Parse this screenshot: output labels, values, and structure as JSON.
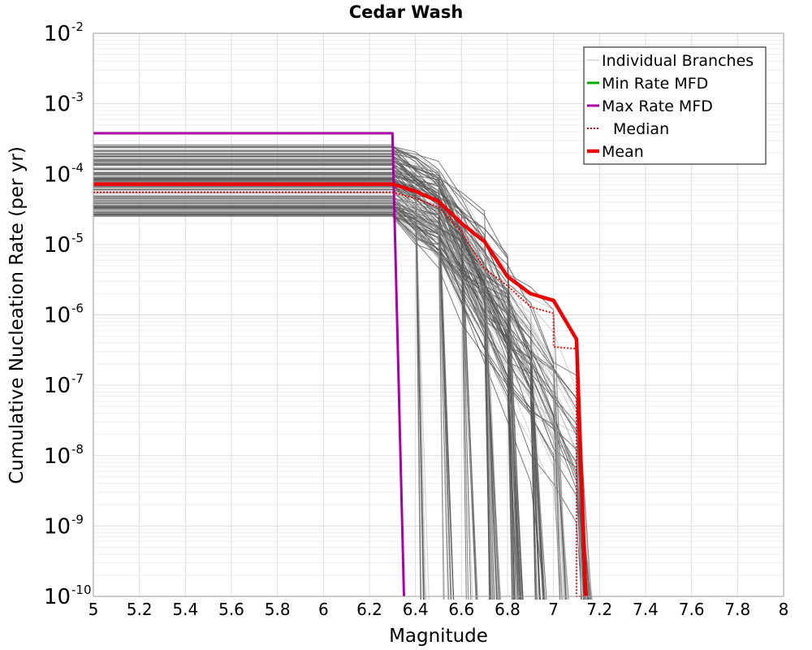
{
  "chart_data": {
    "type": "line",
    "title": "Cedar Wash",
    "xlabel": "Magnitude",
    "ylabel": "Cumulative Nucleation Rate (per yr)",
    "xlim": [
      5,
      8
    ],
    "ylim_log10": [
      -10,
      -2
    ],
    "x_ticks": [
      "5",
      "5.2",
      "5.4",
      "5.6",
      "5.8",
      "6",
      "6.2",
      "6.4",
      "6.6",
      "6.8",
      "7",
      "7.2",
      "7.4",
      "7.6",
      "7.8",
      "8"
    ],
    "y_tick_base": "10",
    "y_tick_exponents": [
      "-2",
      "-3",
      "-4",
      "-5",
      "-6",
      "-7",
      "-8",
      "-9",
      "-10"
    ],
    "grid": true,
    "legend": {
      "position": "top-right",
      "entries": [
        {
          "label": "Individual Branches",
          "color": "#bbbbbb",
          "style": "thin"
        },
        {
          "label": "Min Rate MFD",
          "color": "#00aa00",
          "style": "solid"
        },
        {
          "label": "Max Rate MFD",
          "color": "#aa00aa",
          "style": "solid"
        },
        {
          "label": "Median",
          "color": "#ee0000",
          "style": "dotted"
        },
        {
          "label": "Mean",
          "color": "#ee0000",
          "style": "thick"
        }
      ]
    },
    "branch_count": 160,
    "branch_color": "#555555",
    "series": [
      {
        "name": "Max Rate MFD",
        "color": "#aa00aa",
        "x": [
          5.0,
          6.3,
          6.3,
          6.35
        ],
        "y": [
          0.00038,
          0.00038,
          0.00038,
          1e-10
        ]
      },
      {
        "name": "Median",
        "color": "#ee0000",
        "x": [
          5.0,
          6.3,
          6.4,
          6.5,
          6.6,
          6.7,
          6.8,
          6.9,
          7.0,
          7.0,
          7.1,
          7.1,
          7.14
        ],
        "y": [
          5.5e-05,
          5.5e-05,
          4.5e-05,
          3.4e-05,
          1.5e-05,
          4.5e-06,
          2.6e-06,
          1.3e-06,
          1.05e-06,
          3.5e-07,
          3.3e-07,
          1e-10,
          1e-10
        ]
      },
      {
        "name": "Mean",
        "color": "#ee0000",
        "x": [
          5.0,
          6.3,
          6.4,
          6.5,
          6.6,
          6.7,
          6.8,
          6.9,
          7.0,
          7.1,
          7.14
        ],
        "y": [
          7.2e-05,
          7.2e-05,
          5.7e-05,
          4.1e-05,
          2e-05,
          1.1e-05,
          3.5e-06,
          2e-06,
          1.6e-06,
          4.5e-07,
          1e-10
        ]
      }
    ]
  }
}
